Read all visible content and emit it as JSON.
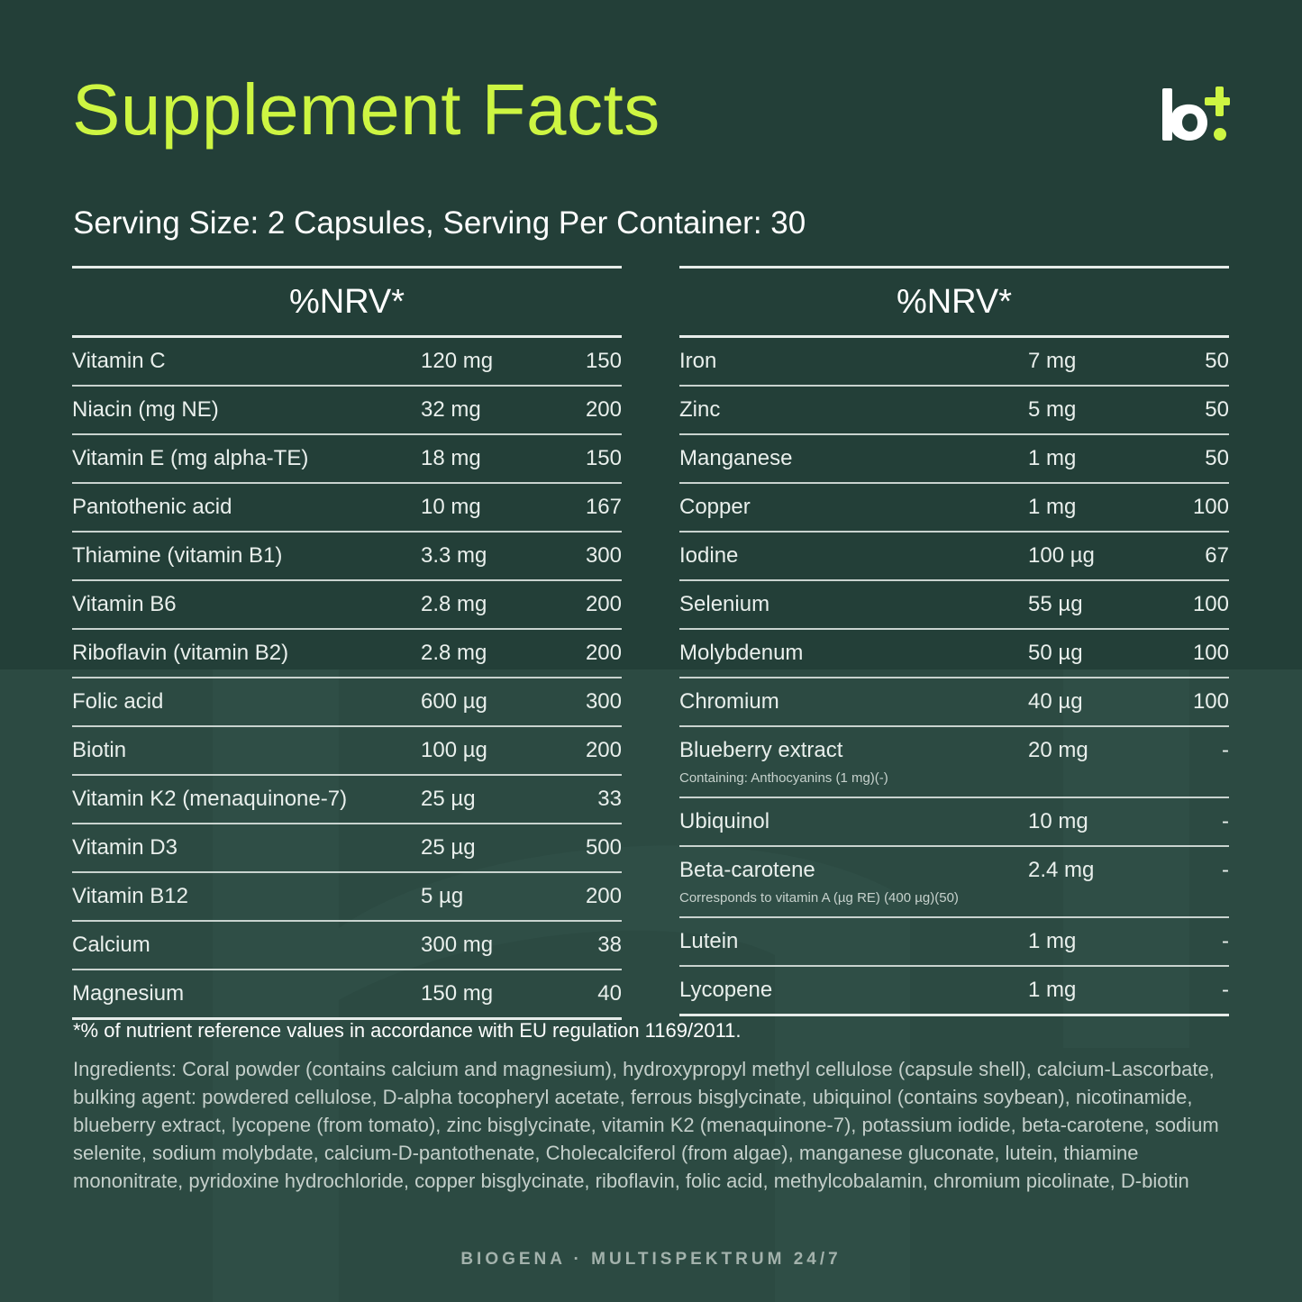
{
  "header": {
    "title": "Supplement Facts",
    "serving": "Serving Size: 2 Capsules, Serving Per Container: 30",
    "logo_text": "b+"
  },
  "colors": {
    "background": "#233f38",
    "background_lower": "#2c4a42",
    "title_accent": "#cdf542",
    "text": "#e9efec"
  },
  "left_table": {
    "header": "%NRV*",
    "rows": [
      {
        "name": "Vitamin C",
        "amount": "120 mg",
        "nrv": "150"
      },
      {
        "name": "Niacin (mg NE)",
        "amount": "32 mg",
        "nrv": "200"
      },
      {
        "name": "Vitamin E (mg alpha-TE)",
        "amount": "18 mg",
        "nrv": "150"
      },
      {
        "name": "Pantothenic acid",
        "amount": "10 mg",
        "nrv": "167"
      },
      {
        "name": "Thiamine (vitamin B1)",
        "amount": "3.3 mg",
        "nrv": "300"
      },
      {
        "name": "Vitamin B6",
        "amount": "2.8 mg",
        "nrv": "200"
      },
      {
        "name": "Riboflavin (vitamin B2)",
        "amount": "2.8 mg",
        "nrv": "200"
      },
      {
        "name": "Folic acid",
        "amount": "600 µg",
        "nrv": "300"
      },
      {
        "name": "Biotin",
        "amount": "100 µg",
        "nrv": "200"
      },
      {
        "name": "Vitamin K2 (menaquinone-7)",
        "amount": "25 µg",
        "nrv": "33"
      },
      {
        "name": "Vitamin D3",
        "amount": "25 µg",
        "nrv": "500"
      },
      {
        "name": "Vitamin B12",
        "amount": "5 µg",
        "nrv": "200"
      },
      {
        "name": "Calcium",
        "amount": "300 mg",
        "nrv": "38"
      },
      {
        "name": "Magnesium",
        "amount": "150 mg",
        "nrv": "40"
      }
    ]
  },
  "right_table": {
    "header": "%NRV*",
    "rows": [
      {
        "name": "Iron",
        "amount": "7 mg",
        "nrv": "50"
      },
      {
        "name": "Zinc",
        "amount": "5 mg",
        "nrv": "50"
      },
      {
        "name": "Manganese",
        "amount": "1 mg",
        "nrv": "50"
      },
      {
        "name": "Copper",
        "amount": "1 mg",
        "nrv": "100"
      },
      {
        "name": "Iodine",
        "amount": "100 µg",
        "nrv": "67"
      },
      {
        "name": "Selenium",
        "amount": "55 µg",
        "nrv": "100"
      },
      {
        "name": "Molybdenum",
        "amount": "50 µg",
        "nrv": "100"
      },
      {
        "name": "Chromium",
        "amount": "40 µg",
        "nrv": "100"
      },
      {
        "name": "Blueberry extract",
        "amount": "20 mg",
        "nrv": "-",
        "note": "Containing: Anthocyanins (1 mg)(-)"
      },
      {
        "name": "Ubiquinol",
        "amount": "10 mg",
        "nrv": "-"
      },
      {
        "name": "Beta-carotene",
        "amount": "2.4 mg",
        "nrv": "-",
        "note": "Corresponds to vitamin A (µg RE) (400 µg)(50)"
      },
      {
        "name": "Lutein",
        "amount": "1 mg",
        "nrv": "-"
      },
      {
        "name": "Lycopene",
        "amount": "1 mg",
        "nrv": "-"
      }
    ]
  },
  "footer": {
    "footnote": "*% of nutrient reference values in accordance with EU regulation 1169/2011.",
    "ingredients": "Ingredients: Coral powder (contains calcium and magnesium), hydroxypropyl methyl cellulose (capsule shell), calcium-Lascorbate, bulking agent: powdered cellulose, D-alpha tocopheryl acetate, ferrous bisglycinate, ubiquinol (contains soybean), nicotinamide, blueberry extract, lycopene (from tomato), zinc bisglycinate, vitamin K2 (menaquinone-7), potassium iodide, beta-carotene, sodium selenite, sodium molybdate, calcium-D-pantothenate, Cholecalciferol (from algae), manganese gluconate, lutein, thiamine mononitrate, pyridoxine hydrochloride, copper bisglycinate, riboflavin, folic acid, methylcobalamin, chromium picolinate, D-biotin",
    "brand_line": "BIOGENA · MULTISPEKTRUM 24/7"
  }
}
